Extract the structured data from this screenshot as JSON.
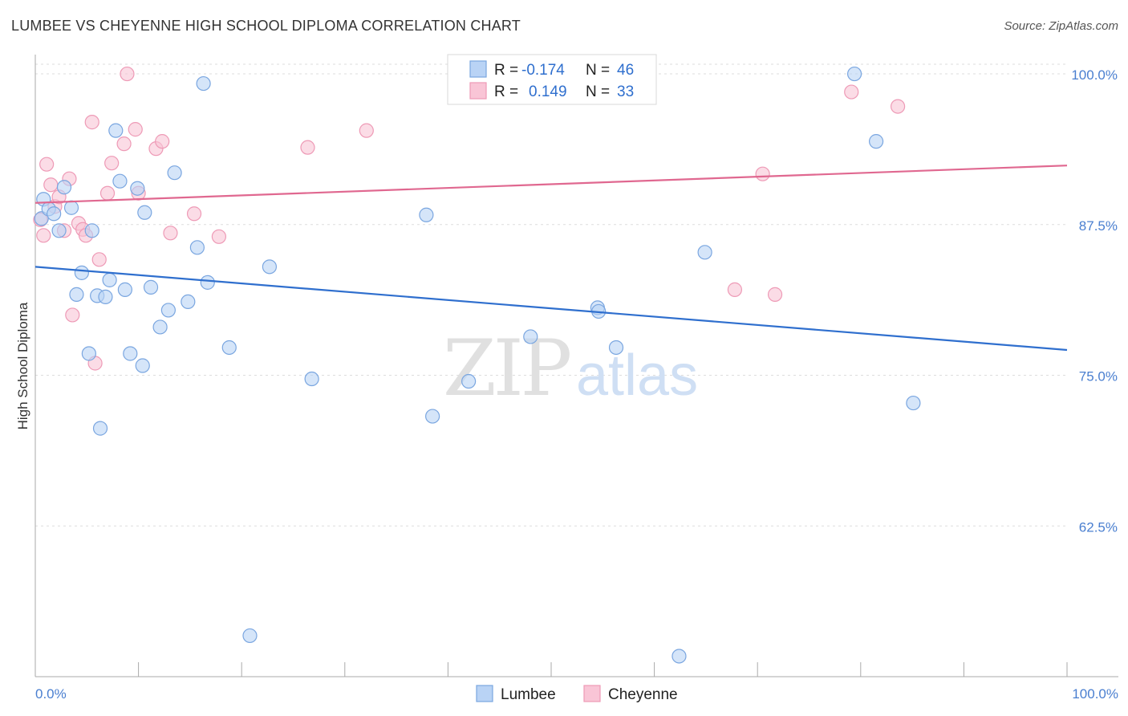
{
  "chart_data": {
    "type": "scatter",
    "title": "LUMBEE VS CHEYENNE HIGH SCHOOL DIPLOMA CORRELATION CHART",
    "source": "Source: ZipAtlas.com",
    "ylabel": "High School Diploma",
    "xlim": [
      0,
      100
    ],
    "ylim": [
      50,
      102
    ],
    "x_tick_labels": [
      "0.0%",
      "100.0%"
    ],
    "y_ticks": [
      {
        "value": 100,
        "label": "100.0%"
      },
      {
        "value": 87.5,
        "label": "87.5%"
      },
      {
        "value": 75,
        "label": "75.0%"
      },
      {
        "value": 62.5,
        "label": "62.5%"
      }
    ],
    "watermark": {
      "zip": "ZIP",
      "atlas": "atlas"
    },
    "colors": {
      "lumbee_fill": "#b9d3f5",
      "lumbee_stroke": "#7aa6e0",
      "lumbee_line": "#2f6fce",
      "cheyenne_fill": "#f9c5d6",
      "cheyenne_stroke": "#ee9ab6",
      "cheyenne_line": "#e06890",
      "grid": "#dddddd"
    },
    "legend": {
      "r_label": "R =",
      "n_label": "N =",
      "items": [
        {
          "r": "-0.174",
          "n": "46"
        },
        {
          "r": "0.149",
          "n": "33"
        }
      ]
    },
    "series": [
      {
        "name": "Lumbee",
        "trend": {
          "x": [
            0,
            100
          ],
          "y": [
            84.0,
            77.1
          ]
        },
        "points": [
          [
            0.6,
            88.0
          ],
          [
            0.8,
            89.6
          ],
          [
            1.3,
            88.8
          ],
          [
            1.8,
            88.4
          ],
          [
            2.3,
            87.0
          ],
          [
            2.8,
            90.6
          ],
          [
            3.5,
            88.9
          ],
          [
            4.0,
            81.7
          ],
          [
            4.5,
            83.5
          ],
          [
            5.2,
            76.8
          ],
          [
            5.5,
            87.0
          ],
          [
            6.0,
            81.6
          ],
          [
            6.3,
            70.6
          ],
          [
            6.8,
            81.5
          ],
          [
            7.2,
            82.9
          ],
          [
            7.8,
            95.3
          ],
          [
            8.2,
            91.1
          ],
          [
            8.7,
            82.1
          ],
          [
            9.2,
            76.8
          ],
          [
            9.9,
            90.5
          ],
          [
            10.4,
            75.8
          ],
          [
            10.6,
            88.5
          ],
          [
            11.2,
            82.3
          ],
          [
            12.1,
            79.0
          ],
          [
            12.9,
            80.4
          ],
          [
            13.5,
            91.8
          ],
          [
            14.8,
            81.1
          ],
          [
            15.7,
            85.6
          ],
          [
            16.3,
            99.2
          ],
          [
            16.7,
            82.7
          ],
          [
            18.8,
            77.3
          ],
          [
            20.8,
            53.4
          ],
          [
            22.7,
            84.0
          ],
          [
            26.8,
            74.7
          ],
          [
            37.9,
            88.3
          ],
          [
            38.5,
            71.6
          ],
          [
            42.0,
            74.5
          ],
          [
            48.0,
            78.2
          ],
          [
            54.5,
            80.6
          ],
          [
            54.6,
            80.3
          ],
          [
            56.3,
            77.3
          ],
          [
            62.4,
            51.7
          ],
          [
            64.9,
            85.2
          ],
          [
            79.4,
            100.0
          ],
          [
            81.5,
            94.4
          ],
          [
            85.1,
            72.7
          ]
        ]
      },
      {
        "name": "Cheyenne",
        "trend": {
          "x": [
            0,
            100
          ],
          "y": [
            89.3,
            92.4
          ]
        },
        "points": [
          [
            0.5,
            87.9
          ],
          [
            0.8,
            86.6
          ],
          [
            1.1,
            92.5
          ],
          [
            1.5,
            90.8
          ],
          [
            1.9,
            89.0
          ],
          [
            2.3,
            89.8
          ],
          [
            2.8,
            87.0
          ],
          [
            3.3,
            91.3
          ],
          [
            3.6,
            80.0
          ],
          [
            4.2,
            87.6
          ],
          [
            4.6,
            87.1
          ],
          [
            4.9,
            86.6
          ],
          [
            5.5,
            96.0
          ],
          [
            5.8,
            76.0
          ],
          [
            6.2,
            84.6
          ],
          [
            7.0,
            90.1
          ],
          [
            7.4,
            92.6
          ],
          [
            8.6,
            94.2
          ],
          [
            9.7,
            95.4
          ],
          [
            10.0,
            90.1
          ],
          [
            11.7,
            93.8
          ],
          [
            12.3,
            94.4
          ],
          [
            13.1,
            86.8
          ],
          [
            15.4,
            88.4
          ],
          [
            17.8,
            86.5
          ],
          [
            8.9,
            100.0
          ],
          [
            26.4,
            93.9
          ],
          [
            32.1,
            95.3
          ],
          [
            67.8,
            82.1
          ],
          [
            70.5,
            91.7
          ],
          [
            71.7,
            81.7
          ],
          [
            79.1,
            98.5
          ],
          [
            83.6,
            97.3
          ]
        ]
      }
    ]
  }
}
